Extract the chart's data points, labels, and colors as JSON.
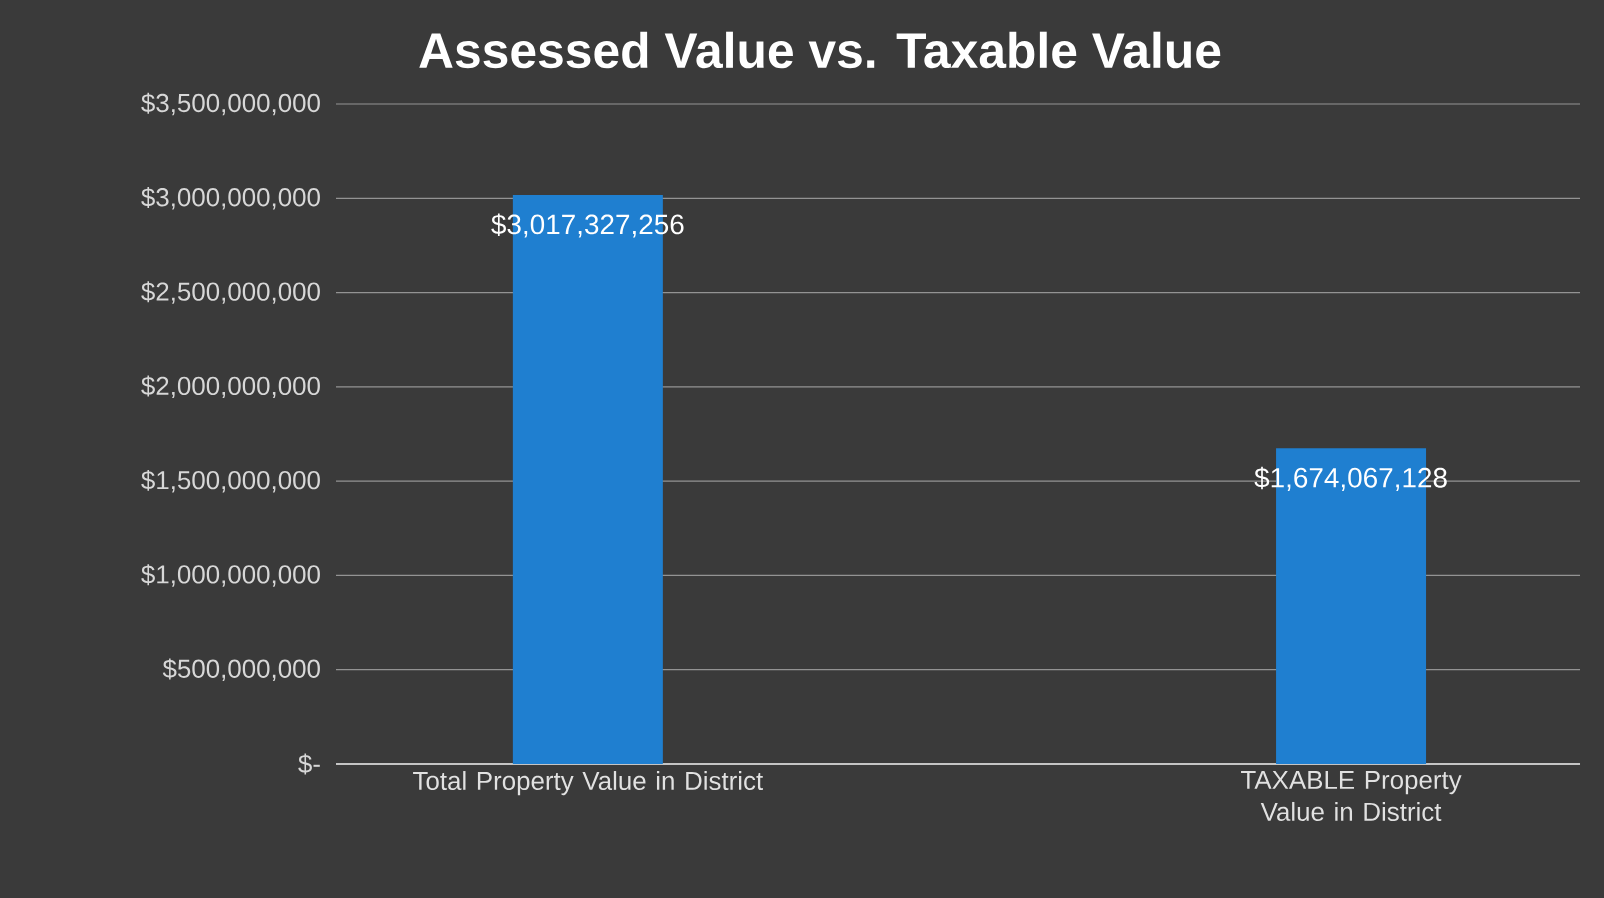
{
  "chart_data": {
    "type": "bar",
    "title": "Assessed Value vs. Taxable Value",
    "categories": [
      "Total Property Value in District",
      "TAXABLE Property Value in District"
    ],
    "values": [
      3017327256,
      1674067128
    ],
    "value_labels": [
      "$3,017,327,256",
      "$1,674,067,128"
    ],
    "color": "#1f7fd0",
    "ylim": [
      0,
      3500000000
    ],
    "yticks": [
      {
        "value": 0,
        "label": "$-"
      },
      {
        "value": 500000000,
        "label": "$500,000,000"
      },
      {
        "value": 1000000000,
        "label": "$1,000,000,000"
      },
      {
        "value": 1500000000,
        "label": "$1,500,000,000"
      },
      {
        "value": 2000000000,
        "label": "$2,000,000,000"
      },
      {
        "value": 2500000000,
        "label": "$2,500,000,000"
      },
      {
        "value": 3000000000,
        "label": "$3,000,000,000"
      },
      {
        "value": 3500000000,
        "label": "$3,500,000,000"
      }
    ],
    "grid": "y"
  }
}
